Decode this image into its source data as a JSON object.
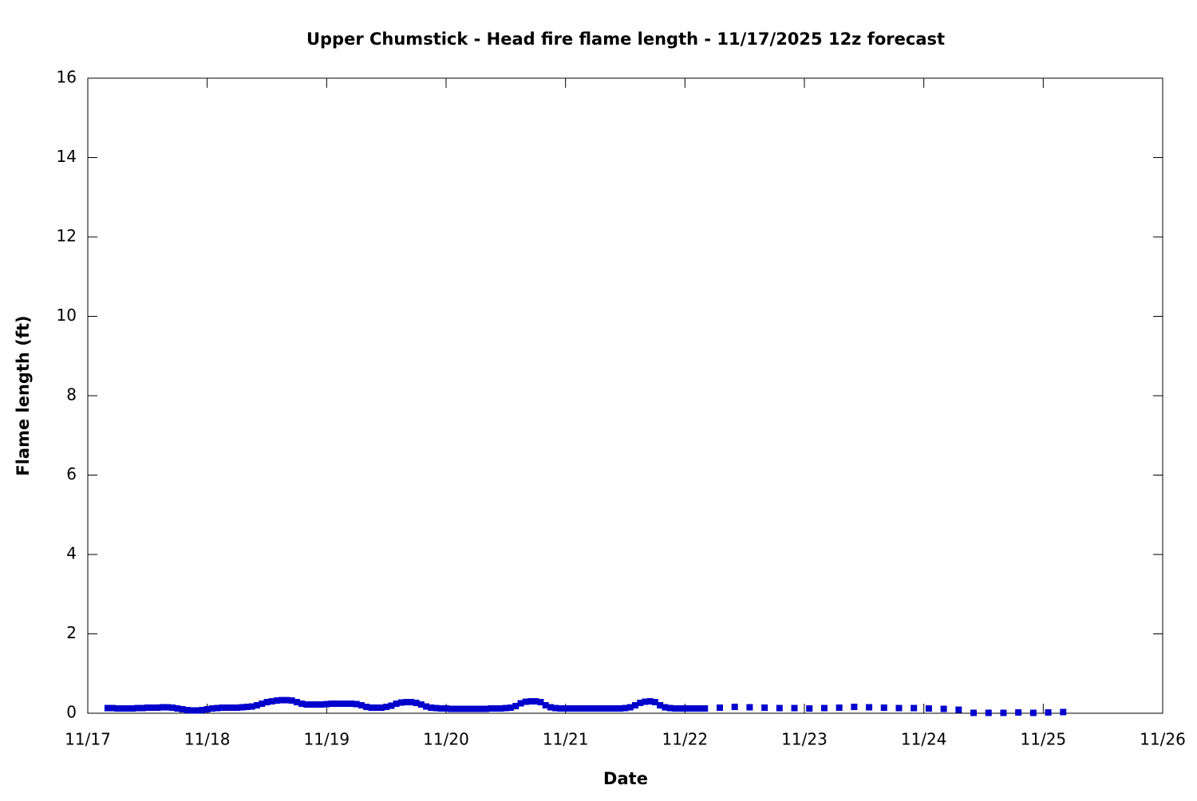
{
  "chart_data": {
    "type": "scatter",
    "title": "Upper Chumstick - Head fire flame length - 11/17/2025 12z forecast",
    "x_label": "Date",
    "y_label": "Flame length (ft)",
    "color": "#0000cc",
    "x": [
      4,
      5,
      6,
      7,
      8,
      9,
      10,
      11,
      12,
      13,
      14,
      15,
      16,
      17,
      18,
      19,
      20,
      21,
      22,
      23,
      24,
      25,
      26,
      27,
      28,
      29,
      30,
      31,
      32,
      33,
      34,
      35,
      36,
      37,
      38,
      39,
      40,
      41,
      42,
      43,
      44,
      45,
      46,
      47,
      48,
      49,
      50,
      51,
      52,
      53,
      54,
      55,
      56,
      57,
      58,
      59,
      60,
      61,
      62,
      63,
      64,
      65,
      66,
      67,
      68,
      69,
      70,
      71,
      72,
      73,
      74,
      75,
      76,
      77,
      78,
      79,
      80,
      81,
      82,
      83,
      84,
      85,
      86,
      87,
      88,
      89,
      90,
      91,
      92,
      93,
      94,
      95,
      96,
      97,
      98,
      99,
      100,
      101,
      102,
      103,
      104,
      105,
      106,
      107,
      108,
      109,
      110,
      111,
      112,
      113,
      114,
      115,
      116,
      117,
      118,
      119,
      120,
      121,
      122,
      123,
      124,
      127,
      130,
      133,
      136,
      139,
      142,
      145,
      148,
      151,
      154,
      157,
      160,
      163,
      166,
      169,
      172,
      175,
      178,
      181,
      184,
      187,
      190,
      193,
      196
    ],
    "values": [
      0.13,
      0.13,
      0.12,
      0.12,
      0.12,
      0.12,
      0.13,
      0.13,
      0.14,
      0.14,
      0.14,
      0.15,
      0.15,
      0.14,
      0.12,
      0.1,
      0.08,
      0.07,
      0.07,
      0.08,
      0.1,
      0.12,
      0.13,
      0.14,
      0.14,
      0.14,
      0.14,
      0.15,
      0.16,
      0.17,
      0.2,
      0.24,
      0.28,
      0.3,
      0.32,
      0.33,
      0.33,
      0.32,
      0.28,
      0.24,
      0.22,
      0.22,
      0.22,
      0.22,
      0.23,
      0.24,
      0.24,
      0.24,
      0.24,
      0.24,
      0.23,
      0.2,
      0.16,
      0.14,
      0.14,
      0.14,
      0.16,
      0.19,
      0.24,
      0.27,
      0.28,
      0.28,
      0.26,
      0.22,
      0.17,
      0.14,
      0.13,
      0.12,
      0.12,
      0.11,
      0.11,
      0.11,
      0.11,
      0.11,
      0.11,
      0.11,
      0.11,
      0.12,
      0.12,
      0.12,
      0.13,
      0.14,
      0.18,
      0.25,
      0.29,
      0.3,
      0.3,
      0.28,
      0.2,
      0.15,
      0.13,
      0.12,
      0.12,
      0.12,
      0.12,
      0.12,
      0.12,
      0.12,
      0.12,
      0.12,
      0.12,
      0.12,
      0.12,
      0.12,
      0.13,
      0.15,
      0.2,
      0.26,
      0.29,
      0.3,
      0.28,
      0.2,
      0.15,
      0.13,
      0.12,
      0.12,
      0.12,
      0.12,
      0.12,
      0.12,
      0.12,
      0.14,
      0.16,
      0.15,
      0.14,
      0.13,
      0.13,
      0.12,
      0.13,
      0.14,
      0.16,
      0.15,
      0.14,
      0.13,
      0.13,
      0.12,
      0.11,
      0.09,
      0.01,
      0.01,
      0.01,
      0.02,
      0.01,
      0.02,
      0.03
    ],
    "xlim": [
      0,
      216
    ],
    "xticks": [
      {
        "value": 0,
        "label": "11/17"
      },
      {
        "value": 24,
        "label": "11/18"
      },
      {
        "value": 48,
        "label": "11/19"
      },
      {
        "value": 72,
        "label": "11/20"
      },
      {
        "value": 96,
        "label": "11/21"
      },
      {
        "value": 120,
        "label": "11/22"
      },
      {
        "value": 144,
        "label": "11/23"
      },
      {
        "value": 168,
        "label": "11/24"
      },
      {
        "value": 192,
        "label": "11/25"
      },
      {
        "value": 216,
        "label": "11/26"
      }
    ],
    "ylim": [
      0,
      16
    ],
    "yticks": [
      0,
      2,
      4,
      6,
      8,
      10,
      12,
      14,
      16
    ],
    "grid": false
  }
}
